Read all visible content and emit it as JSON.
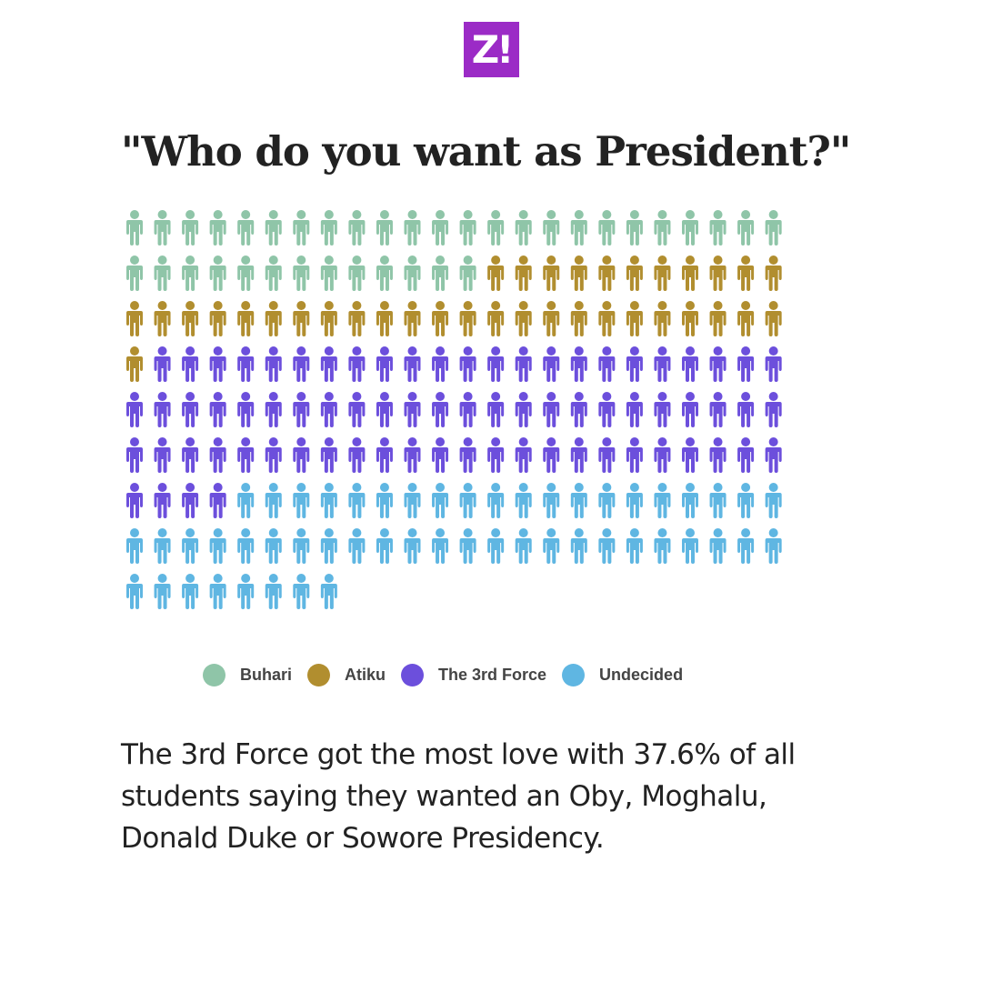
{
  "logo_text": "Z!",
  "chart_data": {
    "type": "pictogram",
    "title": "\"Who do you want as President?\"",
    "total_icons": 200,
    "columns": 24,
    "series": [
      {
        "name": "Buhari",
        "count": 37,
        "color": "#8fc5a8"
      },
      {
        "name": "Atiku",
        "count": 36,
        "color": "#b18e2f"
      },
      {
        "name": "The 3rd Force",
        "count": 75,
        "color": "#6c4fdc"
      },
      {
        "name": "Undecided",
        "count": 52,
        "color": "#5fb6e2"
      }
    ],
    "legend_position": "bottom"
  },
  "caption": "The 3rd Force got the most love with 37.6% of all students saying they wanted an Oby, Moghalu, Donald Duke or Sowore Presidency."
}
